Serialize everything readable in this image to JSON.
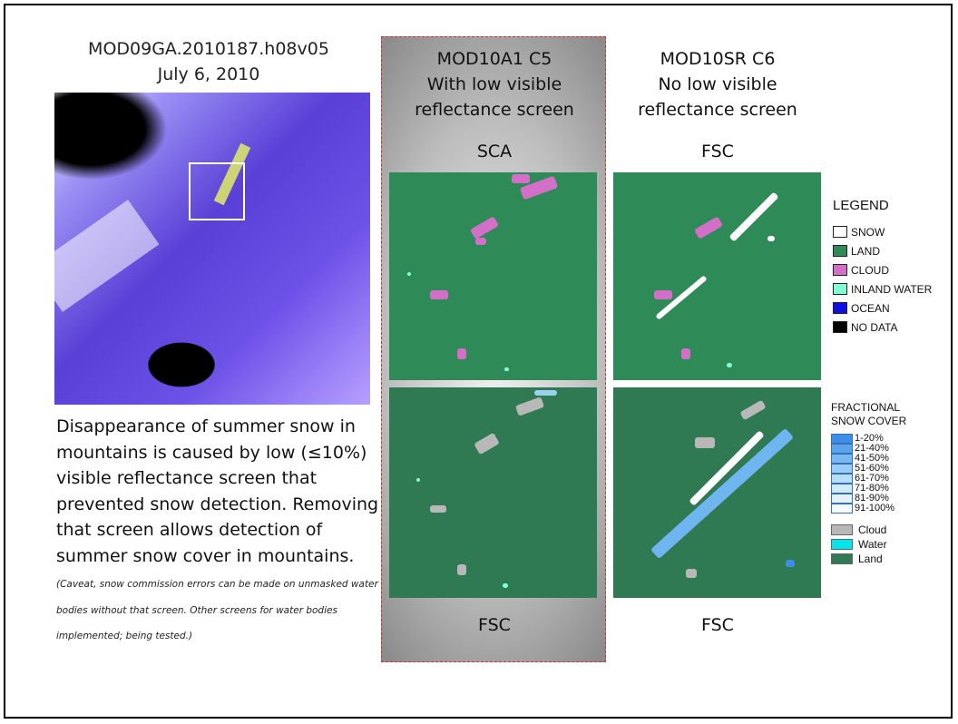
{
  "left": {
    "title_line1": "MOD09GA.2010187.h08v05",
    "title_line2": "July 6, 2010",
    "description": "Disappearance of summer snow in mountains is caused by low (≤10%)  visible reflectance screen that prevented snow detection. Removing that screen allows detection of summer snow cover in mountains.",
    "caveat": "(Caveat, snow commission errors can be made on unmasked water bodies without that screen.  Other screens for water bodies implemented; being tested.)"
  },
  "c5": {
    "title": "MOD10A1 C5",
    "line2": "With low visible",
    "line3": "reflectance screen",
    "top_label": "SCA",
    "bottom_label": "FSC"
  },
  "c6": {
    "title": "MOD10SR C6",
    "line2": "No low visible",
    "line3": "reflectance screen",
    "top_label": "FSC",
    "bottom_label": "FSC"
  },
  "legend": {
    "title": "LEGEND",
    "items": [
      {
        "label": "SNOW",
        "color": "#ffffff"
      },
      {
        "label": "LAND",
        "color": "#2e8b57"
      },
      {
        "label": "CLOUD",
        "color": "#d46fc8"
      },
      {
        "label": "INLAND WATER",
        "color": "#7fffd4"
      },
      {
        "label": "OCEAN",
        "color": "#1010e0"
      },
      {
        "label": "NO DATA",
        "color": "#000000"
      }
    ]
  },
  "fsc_legend": {
    "title_line1": "FRACTIONAL",
    "title_line2": "SNOW COVER",
    "ranges": [
      {
        "label": "1-20%",
        "color": "#3b8eea"
      },
      {
        "label": "21-40%",
        "color": "#5aa3ef"
      },
      {
        "label": "41-50%",
        "color": "#79b8f3"
      },
      {
        "label": "51-60%",
        "color": "#99ccf6"
      },
      {
        "label": "61-70%",
        "color": "#b7def9"
      },
      {
        "label": "71-80%",
        "color": "#cfeafb"
      },
      {
        "label": "81-90%",
        "color": "#e3f3fd"
      },
      {
        "label": "91-100%",
        "color": "#f3fbff"
      }
    ],
    "others": [
      {
        "label": "Cloud",
        "color": "#b8b8b8"
      },
      {
        "label": "Water",
        "color": "#00e5ee"
      },
      {
        "label": "Land",
        "color": "#2f7a52"
      }
    ]
  }
}
